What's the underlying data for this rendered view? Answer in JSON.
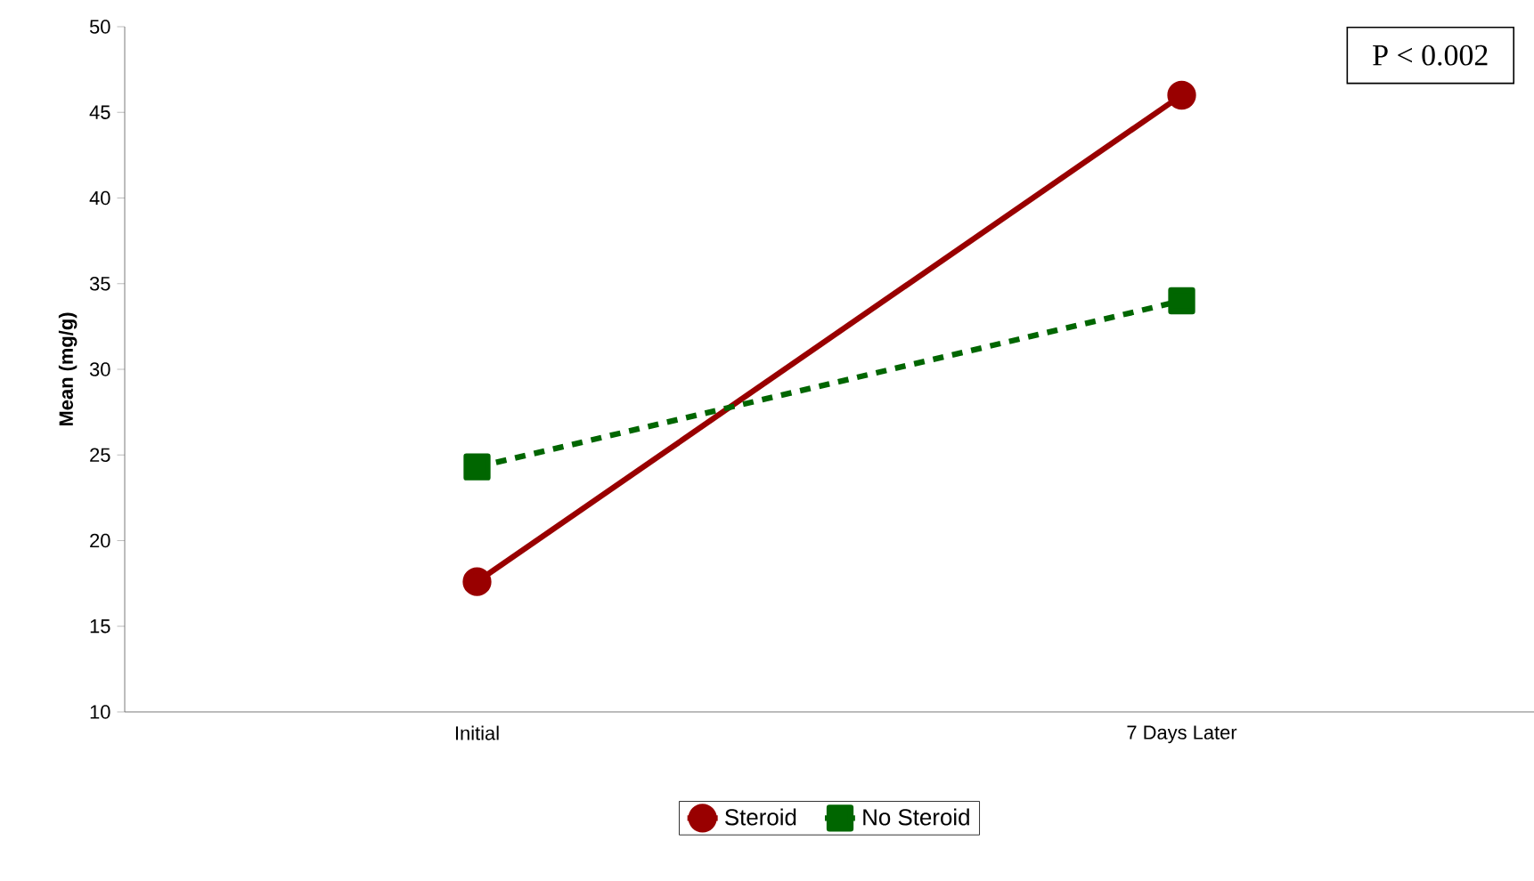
{
  "chart_data": {
    "type": "line",
    "ylabel": "Mean (mg/g)",
    "categories": [
      "Initial",
      "7 Days Later"
    ],
    "series": [
      {
        "name": "Steroid",
        "color": "#990000",
        "values": [
          17.6,
          46
        ],
        "marker": "circle",
        "line_style": "solid"
      },
      {
        "name": "No Steroid",
        "color": "#006600",
        "values": [
          24.3,
          34
        ],
        "marker": "square",
        "line_style": "dashed"
      }
    ],
    "ylim": [
      10,
      50
    ],
    "yticks": [
      10,
      15,
      20,
      25,
      30,
      35,
      40,
      45,
      50
    ],
    "annotations": [
      "P < 0.002"
    ],
    "legend": "bottom",
    "grid": false
  }
}
